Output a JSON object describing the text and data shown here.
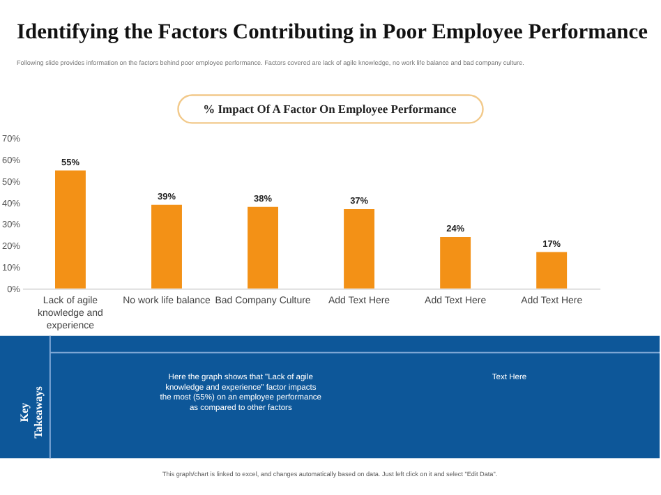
{
  "chart_data": {
    "type": "bar",
    "title": "Identifying the Factors Contributing in Poor Employee Performance",
    "subtitle": "Following slide provides information on the factors behind poor employee performance. Factors covered are lack of agile knowledge, no work life balance and bad company culture.",
    "categories": [
      "Lack of agile knowledge and experience",
      "No work life balance",
      "Bad Company Culture",
      "Add Text Here",
      "Add Text Here",
      "Add Text Here"
    ],
    "values": [
      55,
      39,
      38,
      37,
      24,
      17
    ],
    "value_labels": [
      "55%",
      "39%",
      "38%",
      "37%",
      "24%",
      "17%"
    ],
    "color": "#f39116",
    "ylim": [
      0,
      70
    ],
    "yticks": [
      {
        "value": 0,
        "label": "0%"
      },
      {
        "value": 10,
        "label": "10%"
      },
      {
        "value": 20,
        "label": "20%"
      },
      {
        "value": 30,
        "label": "30%"
      },
      {
        "value": 40,
        "label": "40%"
      },
      {
        "value": 50,
        "label": "50%"
      },
      {
        "value": 60,
        "label": "60%"
      },
      {
        "value": 70,
        "label": "70%"
      }
    ],
    "annotations": [
      "% Impact Of  A Factor On Employee Performance",
      "Key Takeaways",
      "Here the graph shows that \"Lack of agile knowledge and experience\" factor impacts the most (55%) on an employee performance as compared to other factors",
      "Text Here",
      "This graph/chart is linked to excel, and changes automatically based on data. Just left click on it and select \"Edit Data\"."
    ]
  }
}
